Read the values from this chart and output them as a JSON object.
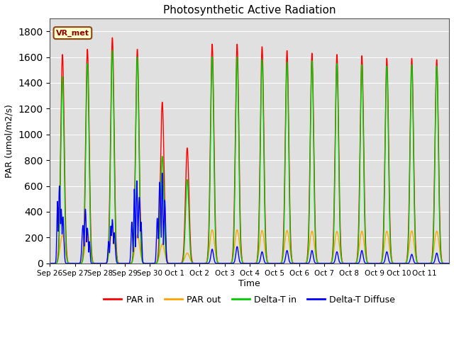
{
  "title": "Photosynthetic Active Radiation",
  "ylabel": "PAR (umol/m2/s)",
  "xlabel": "Time",
  "legend_label": "VR_met",
  "series_labels": [
    "PAR in",
    "PAR out",
    "Delta-T in",
    "Delta-T Diffuse"
  ],
  "colors": [
    "#ff0000",
    "#ffa500",
    "#00cc00",
    "#0000ff"
  ],
  "ylim": [
    0,
    1900
  ],
  "yticks": [
    0,
    200,
    400,
    600,
    800,
    1000,
    1200,
    1400,
    1600,
    1800
  ],
  "background_color": "#e0e0e0",
  "fig_background": "#ffffff",
  "tick_labels": [
    "Sep 26",
    "Sep 27",
    "Sep 28",
    "Sep 29",
    "Sep 30",
    "Oct 1",
    "Oct 2",
    "Oct 3",
    "Oct 4",
    "Oct 5",
    "Oct 6",
    "Oct 7",
    "Oct 8",
    "Oct 9",
    "Oct 10",
    "Oct 11"
  ],
  "n_days": 16,
  "day_peaks_par_in": [
    1620,
    1660,
    1750,
    1660,
    1250,
    895,
    1700,
    1700,
    1680,
    1650,
    1630,
    1620,
    1610,
    1590,
    1590,
    1580
  ],
  "day_peaks_par_out": [
    220,
    240,
    250,
    220,
    150,
    80,
    260,
    260,
    255,
    255,
    250,
    248,
    250,
    250,
    252,
    250
  ],
  "day_peaks_delta_t_in": [
    1450,
    1550,
    1650,
    1600,
    830,
    650,
    1600,
    1600,
    1580,
    1560,
    1570,
    1550,
    1540,
    1530,
    1540,
    1530
  ],
  "day_peaks_diffuse_main": [
    600,
    420,
    340,
    640,
    700,
    0,
    110,
    130,
    90,
    100,
    100,
    90,
    100,
    90,
    70,
    80
  ],
  "samples_per_day": 200,
  "peak_sigma_par": 0.07,
  "peak_sigma_delta": 0.065,
  "peak_sigma_diffuse_late": 0.05
}
